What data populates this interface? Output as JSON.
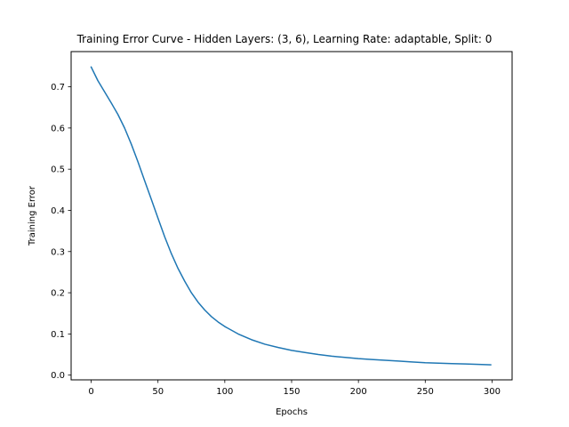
{
  "chart_data": {
    "type": "line",
    "title": "Training Error Curve - Hidden Layers: (3, 6), Learning Rate: adaptable, Split: 0",
    "xlabel": "Epochs",
    "ylabel": "Training Error",
    "xlim": [
      -15,
      315
    ],
    "ylim": [
      -0.0115,
      0.7855
    ],
    "xticks": [
      0,
      50,
      100,
      150,
      200,
      250,
      300
    ],
    "yticks": [
      0.0,
      0.1,
      0.2,
      0.3,
      0.4,
      0.5,
      0.6,
      0.7
    ],
    "grid": false,
    "line_color": "#1f77b4",
    "series": [
      {
        "x": [
          0,
          5,
          10,
          15,
          20,
          25,
          30,
          35,
          40,
          45,
          50,
          55,
          60,
          65,
          70,
          75,
          80,
          85,
          90,
          95,
          100,
          110,
          120,
          130,
          140,
          150,
          160,
          170,
          180,
          190,
          200,
          210,
          220,
          230,
          240,
          250,
          260,
          270,
          280,
          290,
          299
        ],
        "y": [
          0.748,
          0.715,
          0.688,
          0.661,
          0.633,
          0.6,
          0.561,
          0.518,
          0.472,
          0.427,
          0.381,
          0.336,
          0.295,
          0.259,
          0.228,
          0.2,
          0.177,
          0.158,
          0.142,
          0.129,
          0.118,
          0.1,
          0.086,
          0.075,
          0.067,
          0.06,
          0.055,
          0.05,
          0.046,
          0.043,
          0.04,
          0.038,
          0.036,
          0.034,
          0.032,
          0.03,
          0.029,
          0.028,
          0.027,
          0.026,
          0.025
        ]
      }
    ]
  }
}
